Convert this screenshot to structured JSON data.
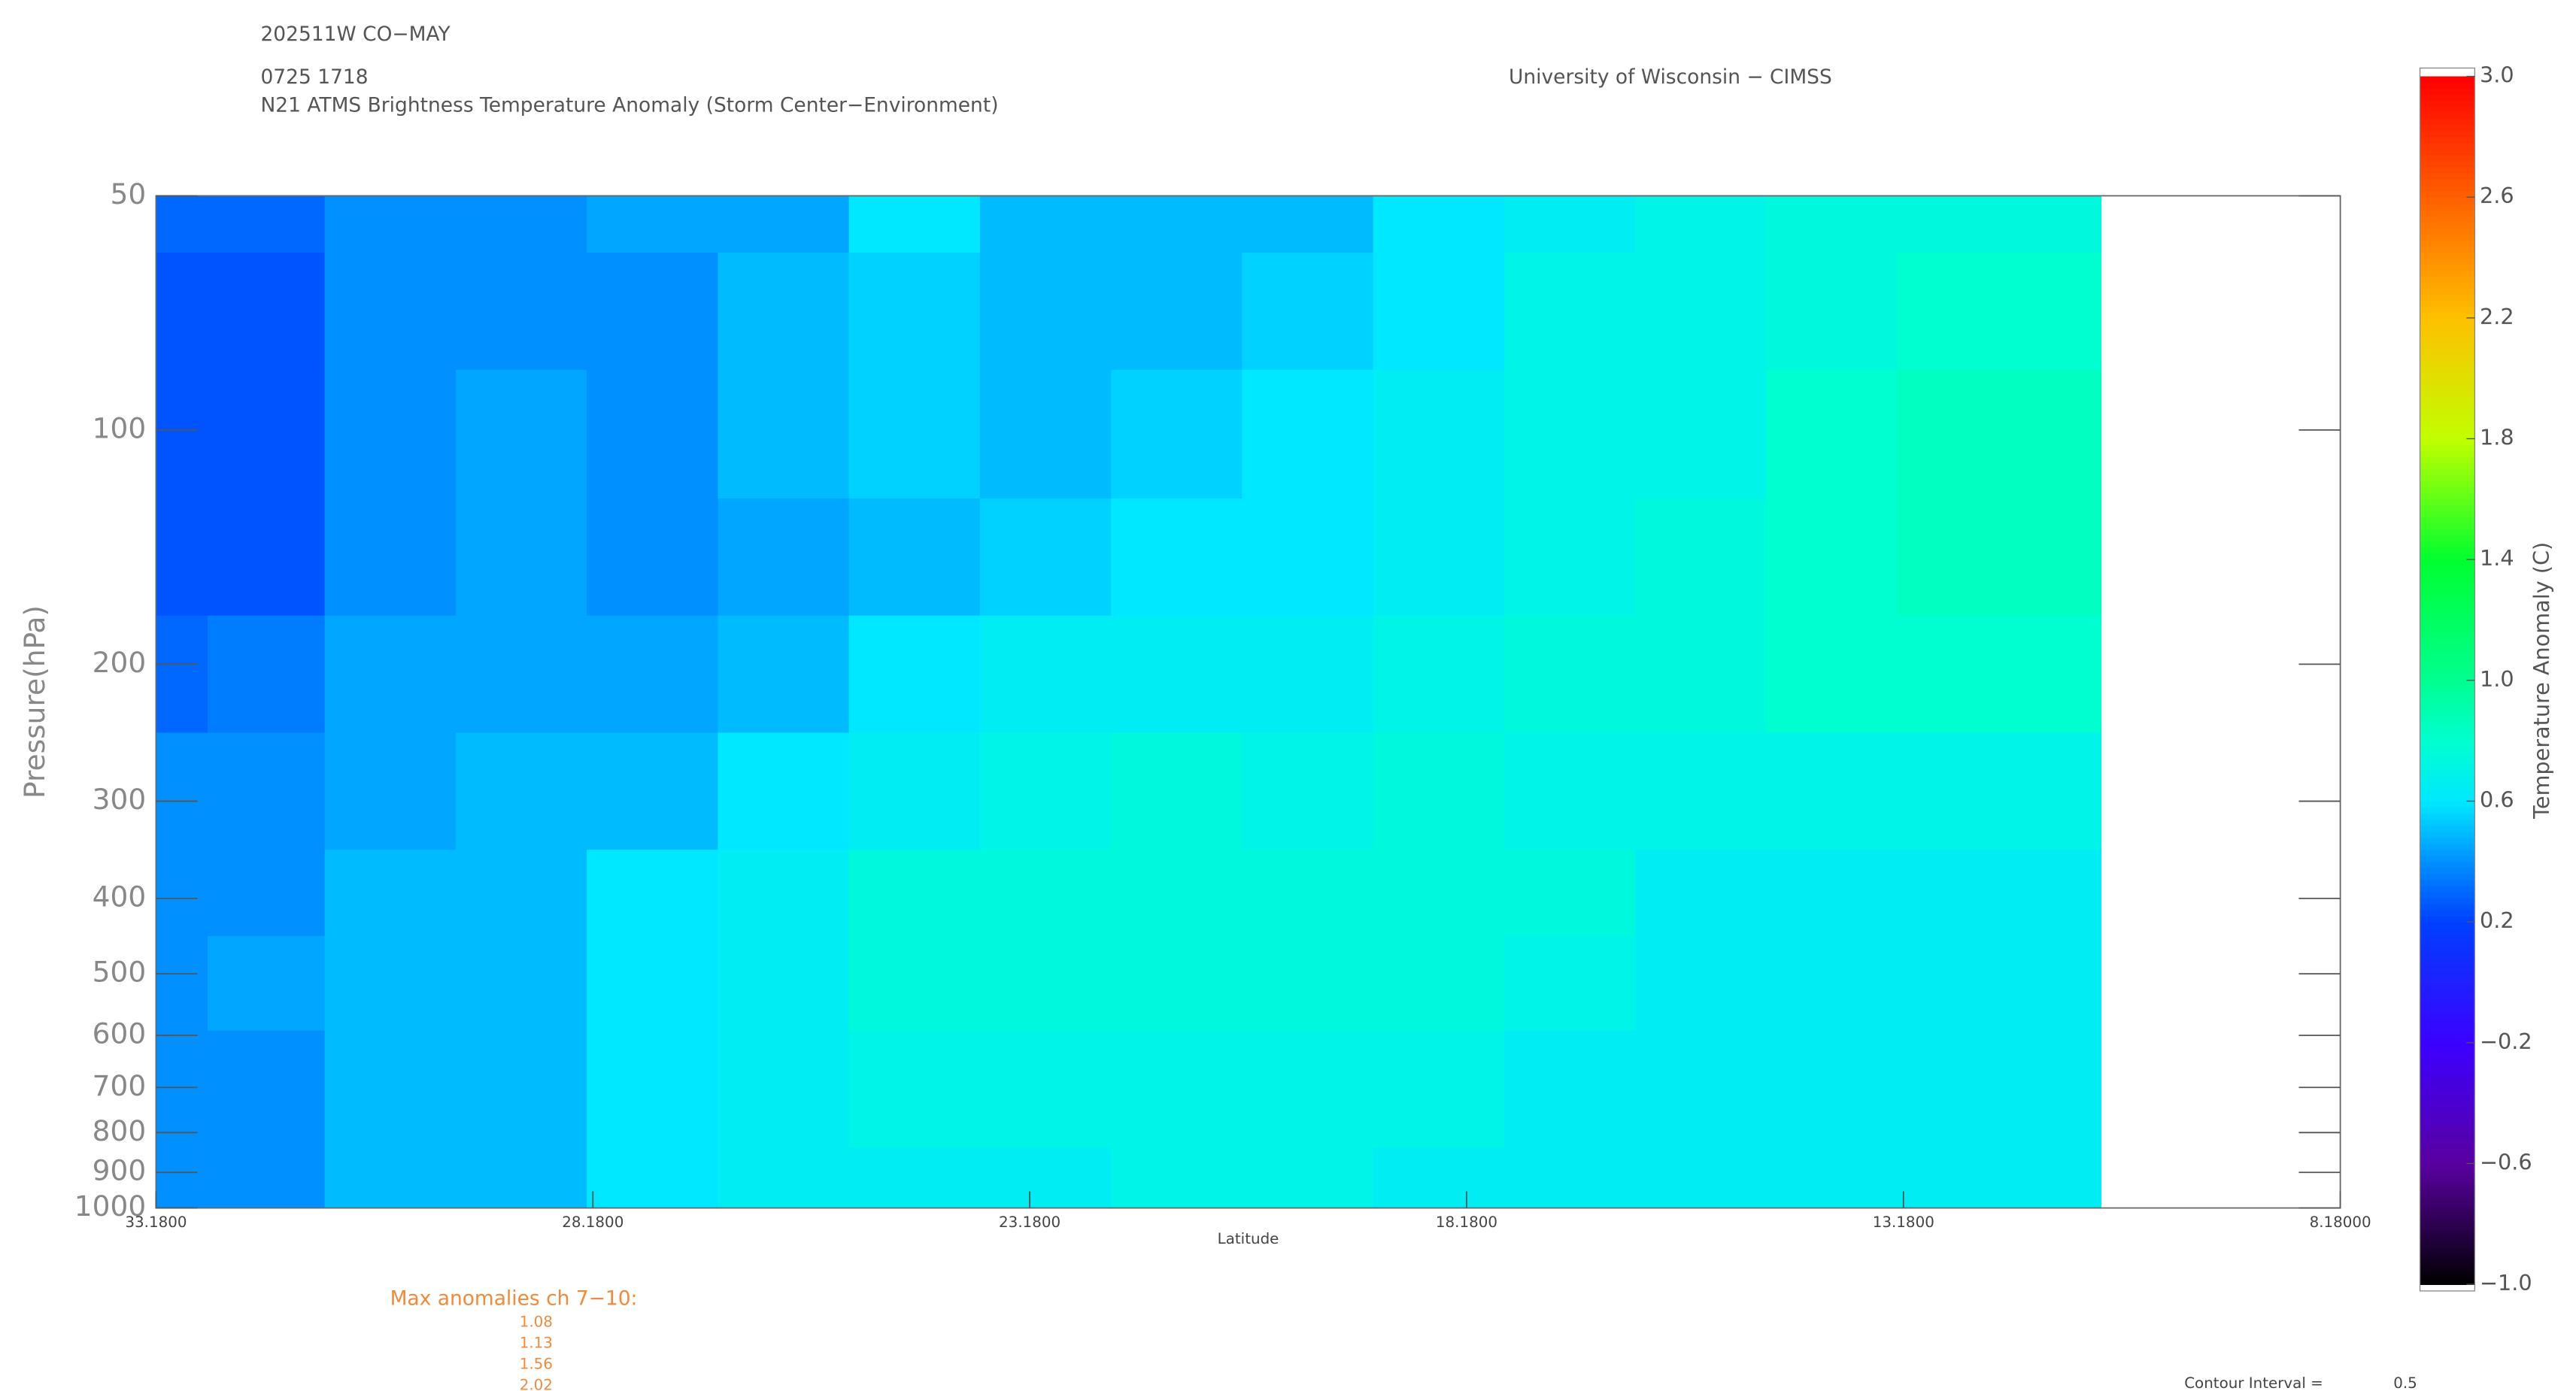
{
  "header": {
    "storm": "202511W CO−MAY",
    "time": "0725 1718",
    "subtitle": "N21 ATMS Brightness Temperature Anomaly (Storm Center−Environment)",
    "institution": "University of Wisconsin − CIMSS"
  },
  "chart_data": {
    "type": "contour",
    "xlabel": "Latitude",
    "ylabel": "Pressure(hPa)",
    "xlim": [
      33.18,
      8.18
    ],
    "xticks": [
      {
        "value": 33.18,
        "label": "33.1800"
      },
      {
        "value": 28.18,
        "label": "28.1800"
      },
      {
        "value": 23.18,
        "label": "23.1800"
      },
      {
        "value": 18.18,
        "label": "18.1800"
      },
      {
        "value": 13.18,
        "label": "13.1800"
      },
      {
        "value": 8.18,
        "label": "8.18000"
      }
    ],
    "ylim": [
      1000,
      50
    ],
    "log_y": true,
    "yticks": [
      50,
      100,
      200,
      300,
      400,
      500,
      600,
      700,
      800,
      900,
      1000
    ],
    "x": [
      33.18,
      32.0,
      30.5,
      29.0,
      27.5,
      26.0,
      24.5,
      23.0,
      21.5,
      20.0,
      18.5,
      17.0,
      15.5,
      14.0,
      12.5,
      10.92
    ],
    "y": [
      50,
      70,
      100,
      150,
      200,
      300,
      400,
      500,
      700,
      1000
    ],
    "z": [
      [
        0.3,
        0.25,
        0.25,
        0.25,
        0.3,
        0.4,
        0.4,
        0.4,
        0.4,
        0.4
      ],
      [
        0.3,
        0.25,
        0.25,
        0.25,
        0.35,
        0.4,
        0.4,
        0.45,
        0.4,
        0.4
      ],
      [
        0.4,
        0.4,
        0.4,
        0.4,
        0.45,
        0.45,
        0.5,
        0.5,
        0.5,
        0.5
      ],
      [
        0.4,
        0.4,
        0.45,
        0.45,
        0.45,
        0.5,
        0.5,
        0.5,
        0.5,
        0.5
      ],
      [
        0.45,
        0.4,
        0.4,
        0.4,
        0.45,
        0.5,
        0.6,
        0.6,
        0.6,
        0.6
      ],
      [
        0.45,
        0.5,
        0.5,
        0.45,
        0.5,
        0.6,
        0.65,
        0.65,
        0.65,
        0.65
      ],
      [
        0.6,
        0.55,
        0.55,
        0.5,
        0.6,
        0.65,
        0.75,
        0.75,
        0.7,
        0.65
      ],
      [
        0.5,
        0.5,
        0.5,
        0.55,
        0.65,
        0.7,
        0.75,
        0.75,
        0.7,
        0.65
      ],
      [
        0.5,
        0.5,
        0.55,
        0.6,
        0.65,
        0.75,
        0.75,
        0.75,
        0.7,
        0.7
      ],
      [
        0.5,
        0.55,
        0.6,
        0.6,
        0.65,
        0.7,
        0.75,
        0.75,
        0.7,
        0.7
      ],
      [
        0.6,
        0.6,
        0.65,
        0.65,
        0.7,
        0.75,
        0.75,
        0.75,
        0.7,
        0.65
      ],
      [
        0.65,
        0.7,
        0.7,
        0.7,
        0.75,
        0.7,
        0.75,
        0.7,
        0.65,
        0.65
      ],
      [
        0.7,
        0.7,
        0.7,
        0.75,
        0.75,
        0.7,
        0.65,
        0.65,
        0.65,
        0.65
      ],
      [
        0.75,
        0.75,
        0.8,
        0.8,
        0.8,
        0.7,
        0.65,
        0.65,
        0.65,
        0.65
      ],
      [
        0.75,
        0.8,
        0.85,
        0.85,
        0.8,
        0.7,
        0.65,
        0.65,
        0.65,
        0.65
      ],
      [
        0.75,
        0.8,
        0.85,
        0.85,
        0.8,
        0.7,
        0.65,
        0.65,
        0.65,
        0.65
      ]
    ],
    "colorbar": {
      "label": "Temperature Anomaly (C)",
      "lim": [
        -1,
        3
      ],
      "ticks": [
        {
          "value": -1,
          "label": "−1.0"
        },
        {
          "value": -0.6,
          "label": "−0.6"
        },
        {
          "value": -0.2,
          "label": "−0.2"
        },
        0.2,
        0.6,
        {
          "value": 1,
          "label": "1.0"
        },
        1.4,
        1.8,
        2.2,
        2.6,
        {
          "value": 3,
          "label": "3.0"
        }
      ]
    },
    "max_anomalies_title": "Max anomalies ch 7−10:",
    "max_anomalies": [
      1.08,
      1.13,
      1.56,
      2.02
    ],
    "contour_interval_label": "Contour Interval =",
    "contour_interval": 0.5
  }
}
